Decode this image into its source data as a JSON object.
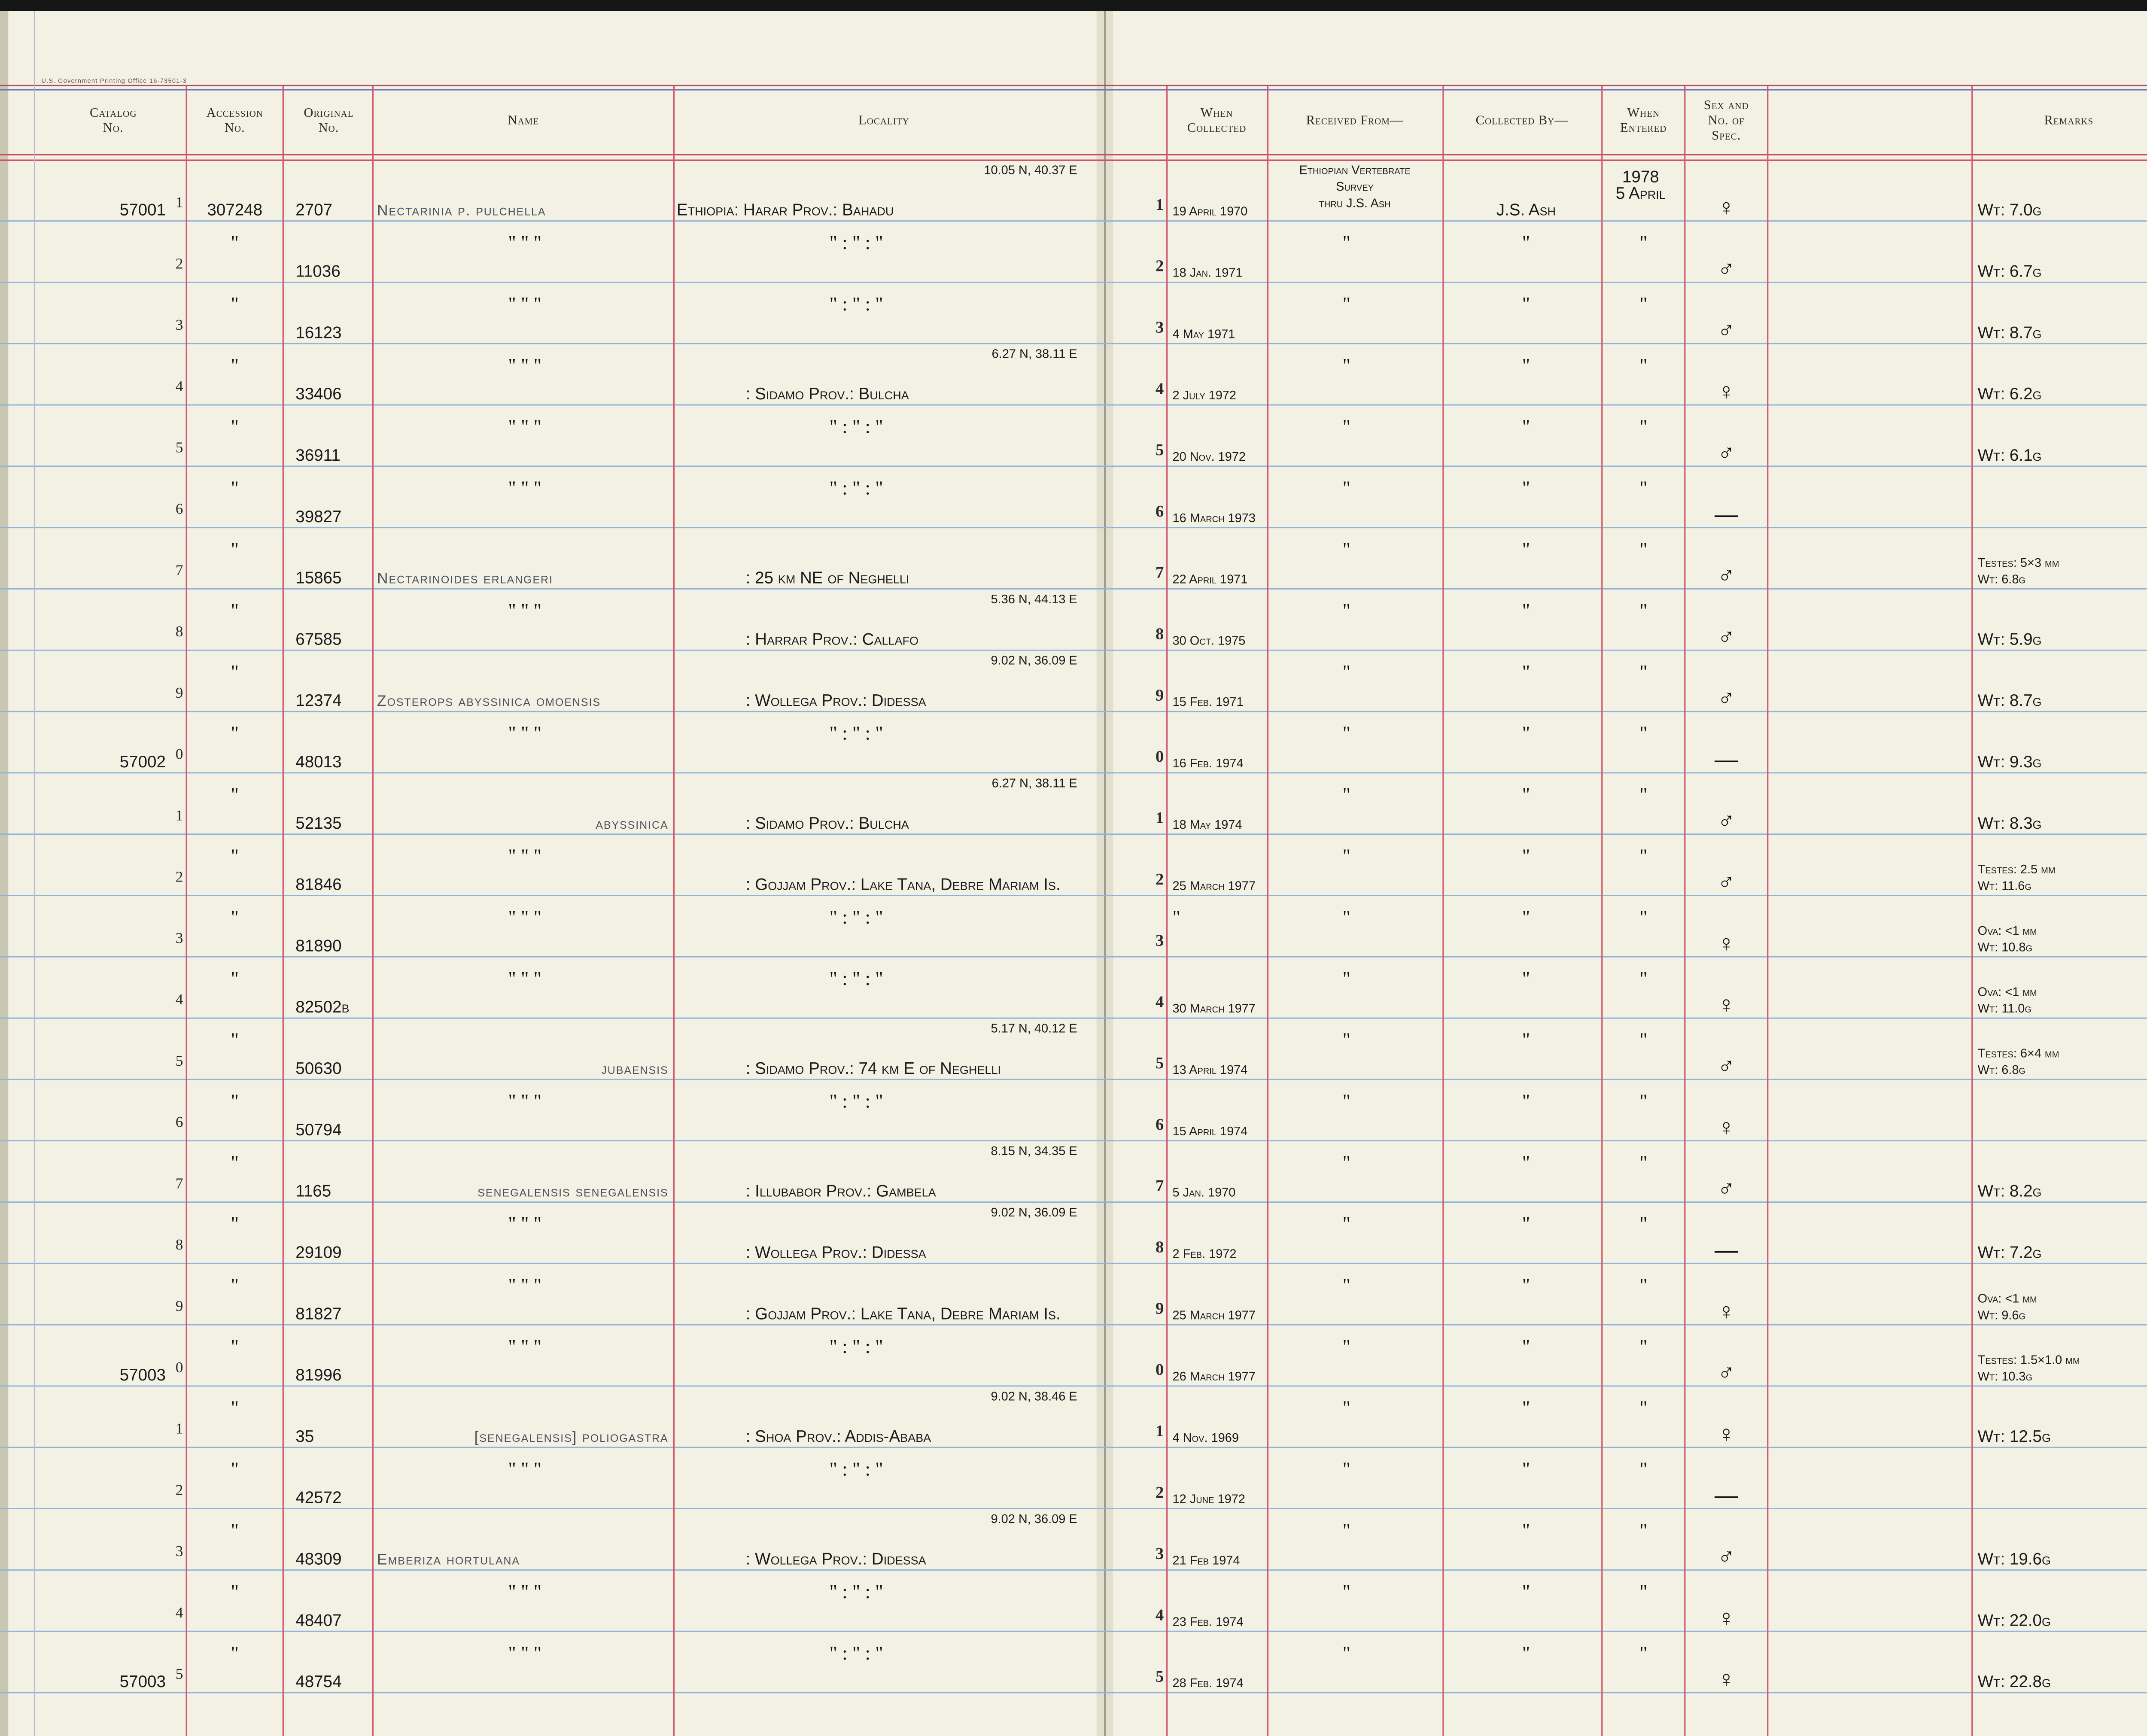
{
  "printer": "U.S. Government Printing Office 16-73501-3",
  "header": {
    "catalog": [
      "Catalog",
      "No."
    ],
    "accession": [
      "Accession",
      "No."
    ],
    "original": [
      "Original",
      "No."
    ],
    "name": [
      "Name"
    ],
    "locality": [
      "Locality"
    ],
    "when_collected": [
      "When",
      "Collected"
    ],
    "received": [
      "Received From—"
    ],
    "collected_by": [
      "Collected By—"
    ],
    "when_entered": [
      "When",
      "Entered"
    ],
    "sex": [
      "Sex and",
      "No. of",
      "Spec."
    ],
    "remarks": [
      "Remarks"
    ]
  },
  "rows": [
    {
      "cat": "57001",
      "idx": "1",
      "acc": "307248",
      "orig": "2707",
      "name": "Nectarinia p. pulchella",
      "coord": "10.05 N, 40.37 E",
      "loc": "Ethiopia: Harar Prov.: Bahadu",
      "when": "19 April 1970",
      "recv": [
        "Ethiopian Vertebrate",
        "Survey",
        "thru J.S. Ash"
      ],
      "coll": "J.S. Ash",
      "entered": [
        "1978",
        "5 April"
      ],
      "sex": "♀",
      "rem": [
        "Wt: 7.0g"
      ]
    },
    {
      "idx": "2",
      "acc": "\"",
      "orig": "11036",
      "name": "\"   \"   \"",
      "loc": "\"   :   \"   :   \"",
      "when": "18 Jan. 1971",
      "recv": "\"",
      "coll": "\"",
      "entered": "\"",
      "sex": "♂",
      "rem": [
        "Wt: 6.7g"
      ]
    },
    {
      "idx": "3",
      "acc": "\"",
      "orig": "16123",
      "name": "\"   \"   \"",
      "loc": "\"   :   \"   :   \"",
      "when": "4 May 1971",
      "recv": "\"",
      "coll": "\"",
      "entered": "\"",
      "sex": "♂",
      "rem": [
        "Wt: 8.7g"
      ]
    },
    {
      "idx": "4",
      "acc": "\"",
      "orig": "33406",
      "name": "\"   \"   \"",
      "coord": "6.27 N, 38.11 E",
      "loc": ": Sidamo Prov.: Bulcha",
      "when": "2 July 1972",
      "recv": "\"",
      "coll": "\"",
      "entered": "\"",
      "sex": "♀",
      "rem": [
        "Wt: 6.2g"
      ]
    },
    {
      "idx": "5",
      "acc": "\"",
      "orig": "36911",
      "name": "\"   \"   \"",
      "loc": "\"   :   \"   :   \"",
      "when": "20 Nov. 1972",
      "recv": "\"",
      "coll": "\"",
      "entered": "\"",
      "sex": "♂",
      "rem": [
        "Wt: 6.1g"
      ]
    },
    {
      "idx": "6",
      "acc": "\"",
      "orig": "39827",
      "name": "\"   \"   \"",
      "loc": "\"   :   \"   :   \"",
      "when": "16 March 1973",
      "recv": "\"",
      "coll": "\"",
      "entered": "\"",
      "sex": "—"
    },
    {
      "idx": "7",
      "acc": "\"",
      "orig": "15865",
      "name": "Nectarinoides erlangeri",
      "loc": ": 25 km NE of Neghelli",
      "when": "22 April 1971",
      "recv": "\"",
      "coll": "\"",
      "entered": "\"",
      "sex": "♂",
      "rem": [
        "Testes: 5×3 mm",
        "Wt: 6.8g"
      ]
    },
    {
      "idx": "8",
      "acc": "\"",
      "orig": "67585",
      "name": "\"   \"   \"",
      "coord": "5.36 N, 44.13 E",
      "loc": ": Harrar Prov.: Callafo",
      "when": "30 Oct. 1975",
      "recv": "\"",
      "coll": "\"",
      "entered": "\"",
      "sex": "♂",
      "rem": [
        "Wt: 5.9g"
      ]
    },
    {
      "idx": "9",
      "acc": "\"",
      "orig": "12374",
      "name": "Zosterops abyssinica omoensis",
      "coord": "9.02 N, 36.09 E",
      "loc": ": Wollega Prov.: Didessa",
      "when": "15 Feb. 1971",
      "recv": "\"",
      "coll": "\"",
      "entered": "\"",
      "sex": "♂",
      "rem": [
        "Wt: 8.7g"
      ]
    },
    {
      "cat": "57002",
      "idx": "0",
      "acc": "\"",
      "orig": "48013",
      "name": "\"   \"   \"",
      "loc": "\"   :   \"   :   \"",
      "when": "16 Feb. 1974",
      "recv": "\"",
      "coll": "\"",
      "entered": "\"",
      "sex": "—",
      "rem": [
        "Wt: 9.3g"
      ]
    },
    {
      "idx": "1",
      "acc": "\"",
      "orig": "52135",
      "name": "abyssinica",
      "coord": "6.27 N, 38.11 E",
      "loc": ": Sidamo Prov.: Bulcha",
      "when": "18 May 1974",
      "recv": "\"",
      "coll": "\"",
      "entered": "\"",
      "sex": "♂",
      "rem": [
        "Wt: 8.3g"
      ]
    },
    {
      "idx": "2",
      "acc": "\"",
      "orig": "81846",
      "name": "\"   \"   \"",
      "loc": ": Gojjam Prov.: Lake Tana, Debre Mariam Is.",
      "when": "25 March 1977",
      "recv": "\"",
      "coll": "\"",
      "entered": "\"",
      "sex": "♂",
      "rem": [
        "Testes: 2.5 mm",
        "Wt: 11.6g"
      ]
    },
    {
      "idx": "3",
      "acc": "\"",
      "orig": "81890",
      "name": "\"   \"   \"",
      "loc": "\"   :   \"   :   \"",
      "when": "\"",
      "recv": "\"",
      "coll": "\"",
      "entered": "\"",
      "sex": "♀",
      "rem": [
        "Ova: <1 mm",
        "Wt: 10.8g"
      ]
    },
    {
      "idx": "4",
      "acc": "\"",
      "orig": "82502b",
      "name": "\"   \"   \"",
      "loc": "\"   :   \"   :   \"",
      "when": "30 March 1977",
      "recv": "\"",
      "coll": "\"",
      "entered": "\"",
      "sex": "♀",
      "rem": [
        "Ova: <1 mm",
        "Wt: 11.0g"
      ]
    },
    {
      "idx": "5",
      "acc": "\"",
      "orig": "50630",
      "name": "jubaensis",
      "coord": "5.17 N, 40.12 E",
      "loc": ": Sidamo Prov.: 74 km E of Neghelli",
      "when": "13 April 1974",
      "recv": "\"",
      "coll": "\"",
      "entered": "\"",
      "sex": "♂",
      "rem": [
        "Testes: 6×4 mm",
        "Wt: 6.8g"
      ]
    },
    {
      "idx": "6",
      "acc": "\"",
      "orig": "50794",
      "name": "\"   \"   \"",
      "loc": "\"   :   \"   :   \"",
      "when": "15 April 1974",
      "recv": "\"",
      "coll": "\"",
      "entered": "\"",
      "sex": "♀"
    },
    {
      "idx": "7",
      "acc": "\"",
      "orig": "1165",
      "name": "senegalensis senegalensis",
      "coord": "8.15 N, 34.35 E",
      "loc": ": Illubabor Prov.: Gambela",
      "when": "5 Jan. 1970",
      "recv": "\"",
      "coll": "\"",
      "entered": "\"",
      "sex": "♂",
      "rem": [
        "Wt: 8.2g"
      ]
    },
    {
      "idx": "8",
      "acc": "\"",
      "orig": "29109",
      "name": "\"   \"   \"",
      "coord": "9.02 N, 36.09 E",
      "loc": ": Wollega Prov.: Didessa",
      "when": "2 Feb. 1972",
      "recv": "\"",
      "coll": "\"",
      "entered": "\"",
      "sex": "—",
      "rem": [
        "Wt: 7.2g"
      ]
    },
    {
      "idx": "9",
      "acc": "\"",
      "orig": "81827",
      "name": "\"   \"   \"",
      "loc": ": Gojjam Prov.: Lake Tana, Debre Mariam Is.",
      "when": "25 March 1977",
      "recv": "\"",
      "coll": "\"",
      "entered": "\"",
      "sex": "♀",
      "rem": [
        "Ova: <1 mm",
        "Wt: 9.6g"
      ]
    },
    {
      "cat": "57003",
      "idx": "0",
      "acc": "\"",
      "orig": "81996",
      "name": "\"   \"   \"",
      "loc": "\"   :   \"   :   \"",
      "when": "26 March 1977",
      "recv": "\"",
      "coll": "\"",
      "entered": "\"",
      "sex": "♂",
      "rem": [
        "Testes: 1.5×1.0 mm",
        "Wt: 10.3g"
      ]
    },
    {
      "idx": "1",
      "acc": "\"",
      "orig": "35",
      "name": "[senegalensis] poliogastra",
      "coord": "9.02 N, 38.46 E",
      "loc": ": Shoa Prov.: Addis-Ababa",
      "when": "4 Nov. 1969",
      "recv": "\"",
      "coll": "\"",
      "entered": "\"",
      "sex": "♀",
      "rem": [
        "Wt: 12.5g"
      ]
    },
    {
      "idx": "2",
      "acc": "\"",
      "orig": "42572",
      "name": "\"   \"   \"",
      "loc": "\"   :   \"   :   \"",
      "when": "12 June 1972",
      "recv": "\"",
      "coll": "\"",
      "entered": "\"",
      "sex": "—"
    },
    {
      "idx": "3",
      "acc": "\"",
      "orig": "48309",
      "name": "Emberiza hortulana",
      "coord": "9.02 N, 36.09 E",
      "loc": ": Wollega Prov.: Didessa",
      "when": "21 Feb 1974",
      "recv": "\"",
      "coll": "\"",
      "entered": "\"",
      "sex": "♂",
      "rem": [
        "Wt: 19.6g"
      ]
    },
    {
      "idx": "4",
      "acc": "\"",
      "orig": "48407",
      "name": "\"   \"   \"",
      "loc": "\"   :   \"   :   \"",
      "when": "23 Feb. 1974",
      "recv": "\"",
      "coll": "\"",
      "entered": "\"",
      "sex": "♀",
      "rem": [
        "Wt: 22.0g"
      ]
    },
    {
      "cat": "57003",
      "idx": "5",
      "acc": "\"",
      "orig": "48754",
      "name": "\"   \"   \"",
      "loc": "\"   :   \"   :   \"",
      "when": "28 Feb. 1974",
      "recv": "\"",
      "coll": "\"",
      "entered": "\"",
      "sex": "♀",
      "rem": [
        "Wt: 22.8g"
      ]
    }
  ]
}
